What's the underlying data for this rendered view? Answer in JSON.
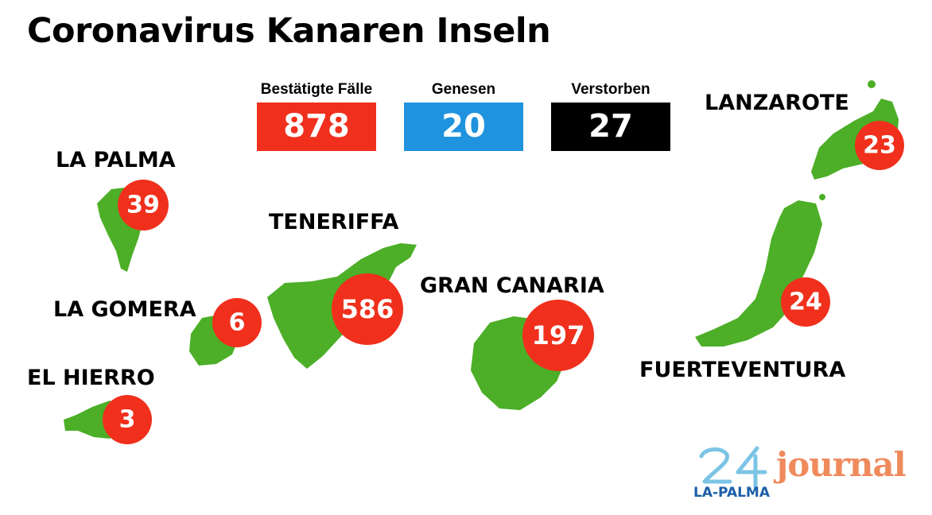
{
  "title": "Coronavirus Kanaren Inseln",
  "stats": [
    {
      "label": "Bestätigte Fälle",
      "value": "878",
      "color": "#f0301c"
    },
    {
      "label": "Genesen",
      "value": "20",
      "color": "#1f93dd"
    },
    {
      "label": "Verstorben",
      "value": "27",
      "color": "#000000"
    }
  ],
  "islands": [
    {
      "name": "LA PALMA",
      "cases": "39"
    },
    {
      "name": "LA GOMERA",
      "cases": "6"
    },
    {
      "name": "EL HIERRO",
      "cases": "3"
    },
    {
      "name": "TENERIFFA",
      "cases": "586"
    },
    {
      "name": "GRAN CANARIA",
      "cases": "197"
    },
    {
      "name": "LANZAROTE",
      "cases": "23"
    },
    {
      "name": "FUERTEVENTURA",
      "cases": "24"
    }
  ],
  "colors": {
    "island": "#4caf27",
    "bubble": "#f0301c"
  },
  "logo": {
    "number": "24",
    "subtitle": "LA-PALMA",
    "brand": "journal",
    "number_color": "#7cc4e6",
    "subtitle_color": "#1a5ea8",
    "brand_color": "#ef8a5c"
  }
}
